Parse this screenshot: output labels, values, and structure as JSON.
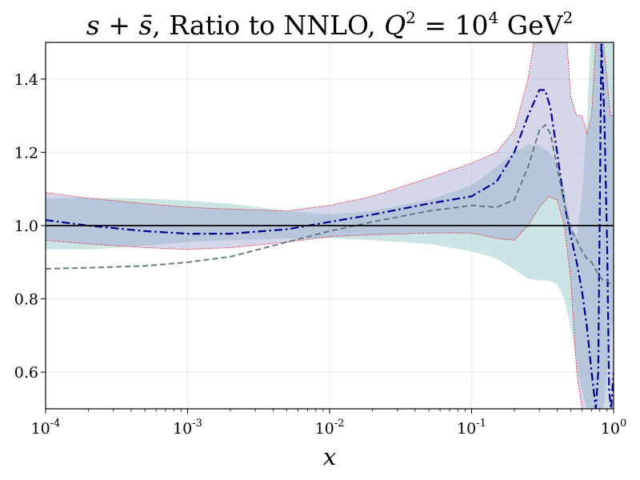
{
  "chart_data": {
    "type": "line",
    "title": {
      "prefix": "s + s̄",
      "text": ", Ratio to NNLO, ",
      "q": "Q",
      "q_exp": "2",
      "eq": " = 10",
      "ten_exp": "4",
      "unit": " GeV",
      "unit_exp": "2"
    },
    "xlabel": "x",
    "ylabel": "",
    "xscale": "log",
    "xlim": [
      0.0001,
      1
    ],
    "ylim": [
      0.5,
      1.5
    ],
    "xticks": [
      {
        "value": 0.0001,
        "base": "10",
        "exp": "-4"
      },
      {
        "value": 0.001,
        "base": "10",
        "exp": "-3"
      },
      {
        "value": 0.01,
        "base": "10",
        "exp": "-2"
      },
      {
        "value": 0.1,
        "base": "10",
        "exp": "-1"
      },
      {
        "value": 1,
        "base": "10",
        "exp": "0"
      }
    ],
    "yticks": [
      {
        "value": 0.6,
        "label": "0.6"
      },
      {
        "value": 0.8,
        "label": "0.8"
      },
      {
        "value": 1.0,
        "label": "1.0"
      },
      {
        "value": 1.2,
        "label": "1.2"
      },
      {
        "value": 1.4,
        "label": "1.4"
      }
    ],
    "grid": true,
    "reference_line": 1.0,
    "colors": {
      "band_teal": "#7fbfbb",
      "band_purple": "#9999cc",
      "band_edge_red": "#dd2233",
      "line_navy": "#00008b",
      "line_gray": "#607878",
      "reference": "#000000"
    },
    "series": [
      {
        "name": "teal-band",
        "kind": "band",
        "x": [
          0.0001,
          0.0002,
          0.0005,
          0.001,
          0.002,
          0.005,
          0.01,
          0.02,
          0.05,
          0.1,
          0.15,
          0.2,
          0.25,
          0.3,
          0.35,
          0.4,
          0.45,
          0.5,
          0.55,
          0.6,
          0.65,
          0.7,
          0.75,
          0.8,
          0.85,
          0.9,
          0.95,
          1.0
        ],
        "upper": [
          1.075,
          1.076,
          1.074,
          1.068,
          1.06,
          1.04,
          1.03,
          1.04,
          1.07,
          1.11,
          1.16,
          1.2,
          1.22,
          1.22,
          1.2,
          1.17,
          1.1,
          1.0,
          0.97,
          1.08,
          1.3,
          1.55,
          1.7,
          1.75,
          1.7,
          1.6,
          1.5,
          1.5
        ],
        "lower": [
          0.935,
          0.935,
          0.945,
          0.955,
          0.96,
          0.965,
          0.965,
          0.96,
          0.95,
          0.93,
          0.91,
          0.88,
          0.855,
          0.85,
          0.85,
          0.84,
          0.8,
          0.72,
          0.62,
          0.55,
          0.5,
          0.5,
          0.5,
          0.5,
          0.5,
          0.6,
          0.7,
          0.75
        ]
      },
      {
        "name": "purple-band",
        "kind": "band",
        "x": [
          0.0001,
          0.0002,
          0.0005,
          0.001,
          0.002,
          0.005,
          0.01,
          0.02,
          0.05,
          0.1,
          0.15,
          0.2,
          0.25,
          0.3,
          0.35,
          0.4,
          0.45,
          0.5,
          0.55,
          0.6,
          0.65,
          0.7,
          0.75,
          0.8,
          0.85,
          0.9,
          0.95,
          1.0
        ],
        "upper": [
          1.09,
          1.075,
          1.06,
          1.05,
          1.045,
          1.04,
          1.055,
          1.08,
          1.13,
          1.17,
          1.2,
          1.26,
          1.4,
          1.6,
          1.8,
          1.8,
          1.6,
          1.35,
          1.3,
          1.3,
          1.25,
          1.3,
          1.5,
          1.6,
          1.5,
          1.4,
          1.3,
          1.3
        ],
        "lower": [
          0.96,
          0.95,
          0.94,
          0.935,
          0.94,
          0.955,
          0.97,
          0.975,
          0.98,
          0.98,
          0.965,
          0.96,
          1.0,
          1.05,
          1.08,
          1.07,
          1.0,
          0.85,
          0.6,
          0.5,
          0.5,
          0.5,
          0.5,
          0.5,
          0.5,
          0.5,
          0.5,
          0.5
        ]
      },
      {
        "name": "navy-dashdot",
        "kind": "line",
        "style": "dashdot",
        "x": [
          0.0001,
          0.0002,
          0.0005,
          0.001,
          0.002,
          0.005,
          0.01,
          0.02,
          0.05,
          0.1,
          0.15,
          0.2,
          0.25,
          0.3,
          0.33,
          0.36,
          0.4,
          0.45,
          0.5,
          0.55,
          0.6,
          0.65,
          0.7,
          0.75,
          0.78,
          0.82,
          0.86,
          0.9,
          0.93,
          0.96,
          1.0
        ],
        "values": [
          1.015,
          1.0,
          0.985,
          0.978,
          0.978,
          0.99,
          1.01,
          1.03,
          1.06,
          1.08,
          1.12,
          1.2,
          1.3,
          1.37,
          1.37,
          1.32,
          1.2,
          1.06,
          0.97,
          0.9,
          0.82,
          0.72,
          0.6,
          0.5,
          0.6,
          1.5,
          1.3,
          0.95,
          0.55,
          0.5,
          0.6
        ]
      },
      {
        "name": "gray-dashed",
        "kind": "line",
        "style": "dashed",
        "x": [
          0.0001,
          0.0002,
          0.0005,
          0.001,
          0.002,
          0.005,
          0.01,
          0.02,
          0.05,
          0.1,
          0.15,
          0.2,
          0.25,
          0.3,
          0.33,
          0.36,
          0.4,
          0.45,
          0.5,
          0.55,
          0.6,
          0.65,
          0.7,
          0.75,
          0.8,
          0.85,
          0.9,
          0.95,
          1.0
        ],
        "values": [
          0.882,
          0.885,
          0.89,
          0.9,
          0.915,
          0.955,
          0.985,
          1.01,
          1.04,
          1.055,
          1.05,
          1.07,
          1.16,
          1.26,
          1.275,
          1.25,
          1.16,
          1.06,
          0.99,
          0.96,
          0.93,
          0.91,
          0.9,
          0.88,
          0.86,
          0.85,
          0.85,
          0.84,
          0.84
        ]
      }
    ]
  }
}
